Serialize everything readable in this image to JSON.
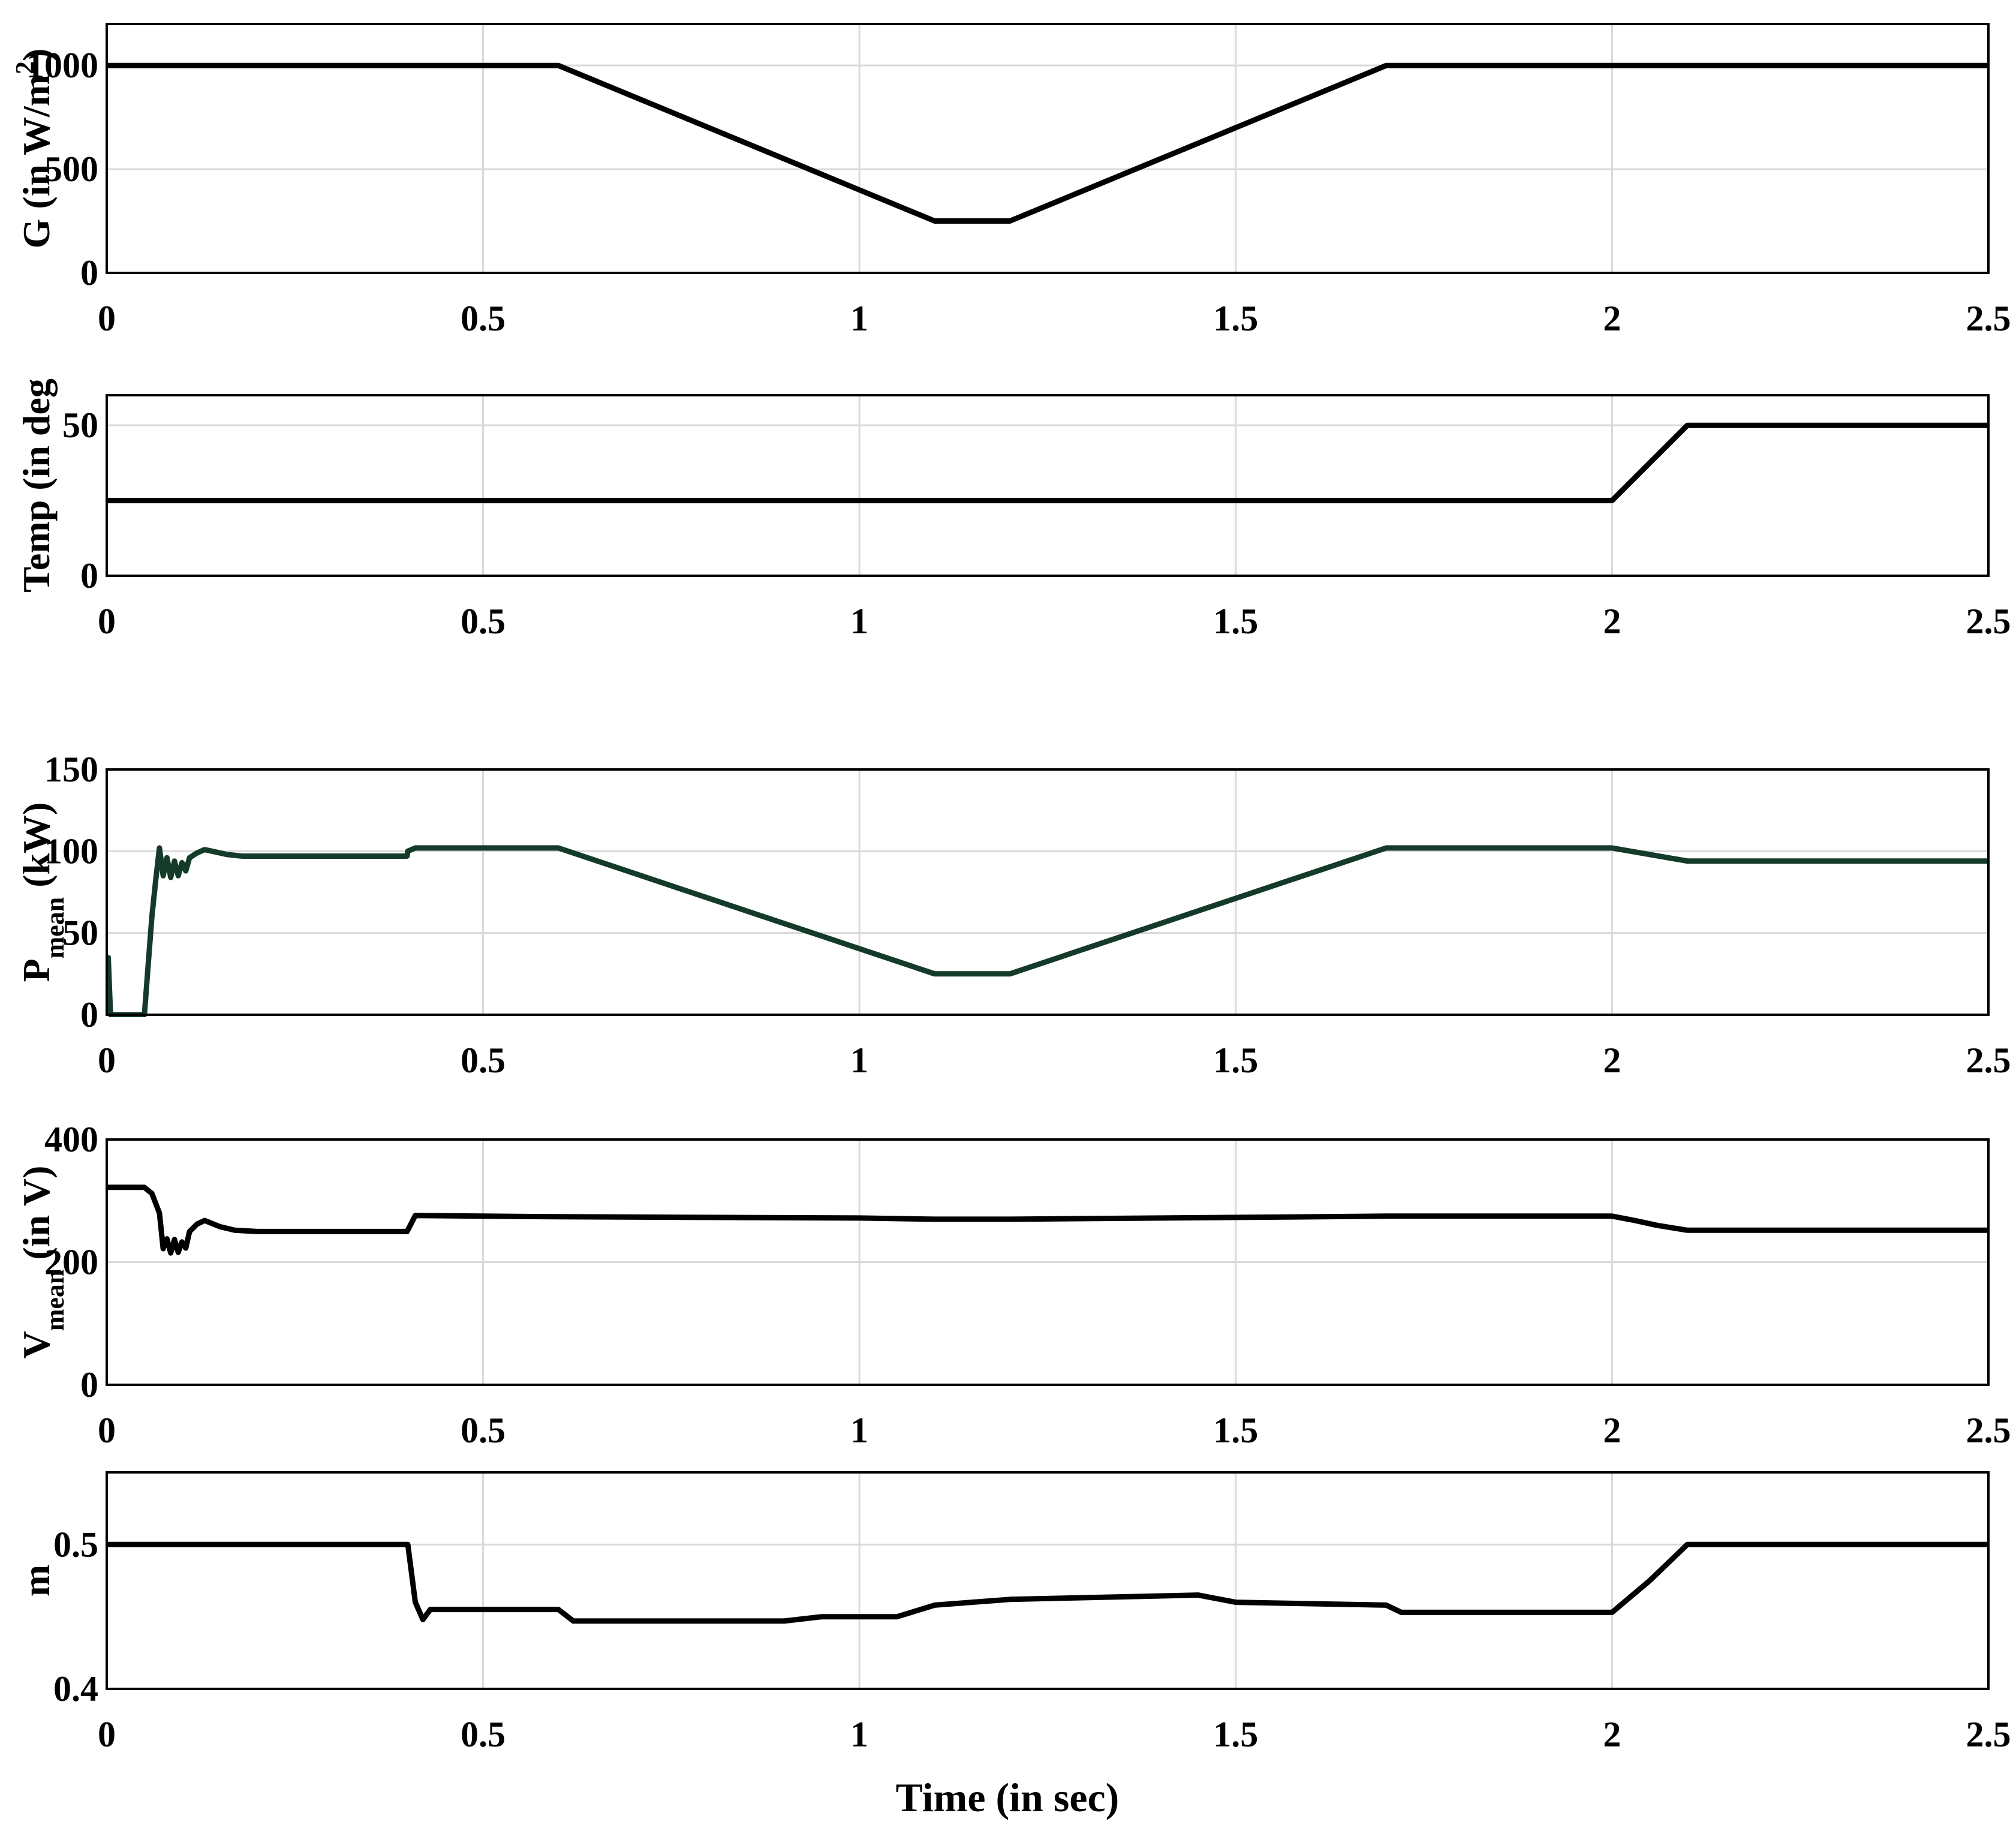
{
  "figure": {
    "xlabel": "Time (in sec)"
  },
  "chart_data": [
    {
      "type": "line",
      "ylabel": "G (in W/m^2)",
      "ylabel_parts": {
        "main": "G (in W/m",
        "sup": "2",
        "tail": ")"
      },
      "xlim": [
        0,
        2.5
      ],
      "ylim": [
        0,
        1200
      ],
      "xticks": [
        "0",
        "0.5",
        "1",
        "1.5",
        "2",
        "2.5"
      ],
      "yticks": [
        "0",
        "500",
        "1000"
      ],
      "grid": true,
      "series": [
        {
          "color": "#000000",
          "x": [
            0,
            0.6,
            1.1,
            1.2,
            1.7,
            2.5
          ],
          "y": [
            1000,
            1000,
            250,
            250,
            1000,
            1000
          ]
        }
      ]
    },
    {
      "type": "line",
      "ylabel": "Temp (in deg",
      "xlim": [
        0,
        2.5
      ],
      "ylim": [
        0,
        60
      ],
      "xticks": [
        "0",
        "0.5",
        "1",
        "1.5",
        "2",
        "2.5"
      ],
      "yticks": [
        "0",
        "50"
      ],
      "grid": true,
      "series": [
        {
          "color": "#000000",
          "x": [
            0,
            2.0,
            2.1,
            2.5
          ],
          "y": [
            25,
            25,
            50,
            50
          ]
        }
      ]
    },
    {
      "type": "line",
      "ylabel": "P_mean (kW)",
      "ylabel_parts": {
        "main": "P",
        "sub": "mean",
        "tail": " (kW)"
      },
      "xlim": [
        0,
        2.5
      ],
      "ylim": [
        0,
        150
      ],
      "xticks": [
        "0",
        "0.5",
        "1",
        "1.5",
        "2",
        "2.5"
      ],
      "yticks": [
        "0",
        "50",
        "100",
        "150"
      ],
      "grid": true,
      "series": [
        {
          "color": "#143a2a",
          "x": [
            0,
            0.002,
            0.005,
            0.05,
            0.055,
            0.06,
            0.065,
            0.07,
            0.075,
            0.08,
            0.085,
            0.09,
            0.095,
            0.1,
            0.105,
            0.11,
            0.12,
            0.13,
            0.14,
            0.16,
            0.18,
            0.2,
            0.25,
            0.3,
            0.35,
            0.399,
            0.4,
            0.41,
            0.5,
            0.6,
            1.1,
            1.2,
            1.7,
            2.0,
            2.1,
            2.5
          ],
          "y": [
            35,
            35,
            0,
            0,
            30,
            60,
            82,
            102,
            85,
            96,
            84,
            94,
            85,
            93,
            88,
            96,
            99,
            101,
            100,
            98,
            97,
            97,
            97,
            97,
            97,
            97,
            100,
            102,
            102,
            102,
            25,
            25,
            102,
            102,
            94,
            94
          ]
        }
      ]
    },
    {
      "type": "line",
      "ylabel": "V_mean (in V)",
      "ylabel_parts": {
        "main": "V",
        "sub": "mean",
        "tail": " (in V)"
      },
      "xlim": [
        0,
        2.5
      ],
      "ylim": [
        0,
        400
      ],
      "xticks": [
        "0",
        "0.5",
        "1",
        "1.5",
        "2",
        "2.5"
      ],
      "yticks": [
        "0",
        "200",
        "400"
      ],
      "grid": true,
      "series": [
        {
          "color": "#000000",
          "x": [
            0,
            0.05,
            0.06,
            0.07,
            0.075,
            0.08,
            0.085,
            0.09,
            0.095,
            0.1,
            0.105,
            0.11,
            0.12,
            0.13,
            0.15,
            0.17,
            0.2,
            0.3,
            0.399,
            0.41,
            0.5,
            0.6,
            0.8,
            1.0,
            1.1,
            1.2,
            1.5,
            1.7,
            2.0,
            2.03,
            2.06,
            2.1,
            2.5
          ],
          "y": [
            322,
            322,
            312,
            280,
            222,
            238,
            215,
            237,
            216,
            233,
            223,
            250,
            262,
            268,
            258,
            252,
            250,
            250,
            250,
            276,
            275,
            274,
            273,
            272,
            270,
            270,
            273,
            275,
            275,
            268,
            260,
            252,
            252
          ]
        }
      ]
    },
    {
      "type": "line",
      "ylabel": "m",
      "xlim": [
        0,
        2.5
      ],
      "ylim": [
        0.4,
        0.55
      ],
      "xticks": [
        "0",
        "0.5",
        "1",
        "1.5",
        "2",
        "2.5"
      ],
      "yticks": [
        "0.4",
        "0.5"
      ],
      "grid": true,
      "series": [
        {
          "color": "#000000",
          "x": [
            0,
            0.4,
            0.41,
            0.42,
            0.43,
            0.6,
            0.62,
            0.9,
            0.95,
            1.05,
            1.1,
            1.2,
            1.45,
            1.5,
            1.7,
            1.72,
            2.0,
            2.05,
            2.1,
            2.5
          ],
          "y": [
            0.5,
            0.5,
            0.46,
            0.448,
            0.455,
            0.455,
            0.447,
            0.447,
            0.45,
            0.45,
            0.458,
            0.462,
            0.465,
            0.46,
            0.458,
            0.453,
            0.453,
            0.475,
            0.5,
            0.5
          ]
        }
      ]
    }
  ]
}
